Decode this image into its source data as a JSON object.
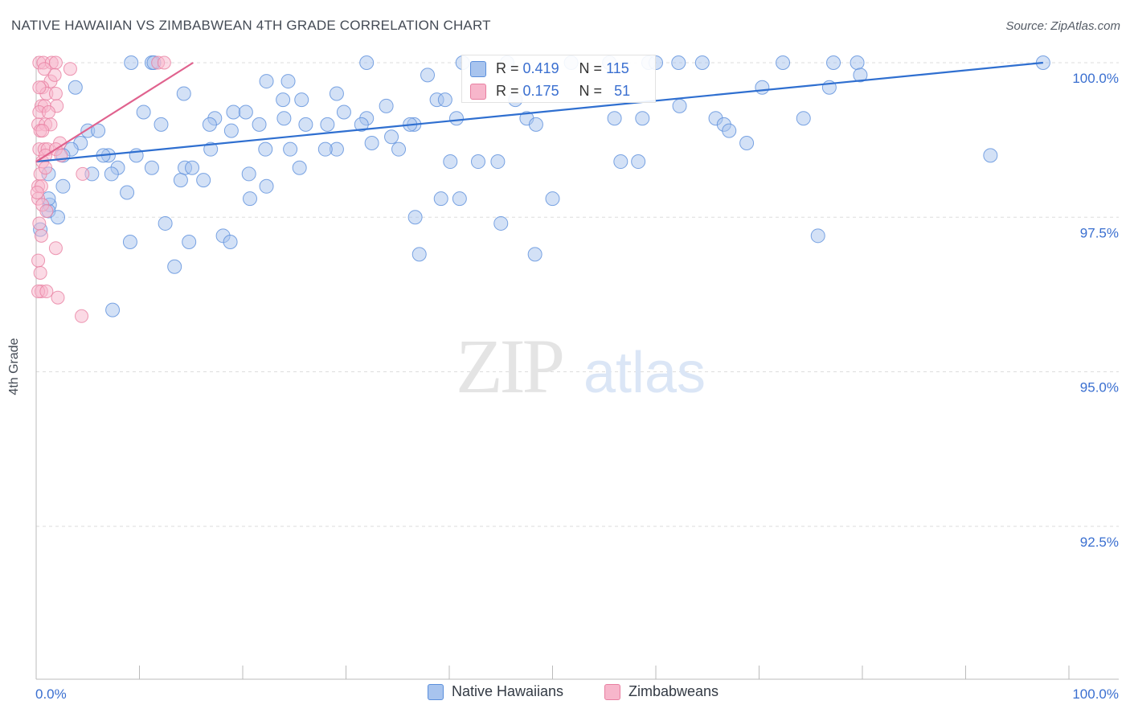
{
  "title": "NATIVE HAWAIIAN VS ZIMBABWEAN 4TH GRADE CORRELATION CHART",
  "source": "Source: ZipAtlas.com",
  "watermark": {
    "zip": "ZIP",
    "atlas": "atlas"
  },
  "colors": {
    "blue_fill": "#a8c4ee",
    "blue_stroke": "#5b8fdc",
    "blue_line": "#2f6fd0",
    "pink_fill": "#f7b6cb",
    "pink_stroke": "#e87fa1",
    "pink_line": "#e0628e",
    "axis_label": "#3a6fd0",
    "grid": "#dddddd"
  },
  "stats": {
    "r_label": "R =",
    "n_label": "N =",
    "blue": {
      "r": "0.419",
      "n": "115"
    },
    "pink": {
      "r": "0.175",
      "n": "51"
    }
  },
  "legend": {
    "blue": "Native Hawaiians",
    "pink": "Zimbabweans"
  },
  "chart_data": {
    "type": "scatter",
    "title": "NATIVE HAWAIIAN VS ZIMBABWEAN 4TH GRADE CORRELATION CHART",
    "xlabel": "",
    "ylabel": "4th Grade",
    "xlim": [
      0,
      100
    ],
    "ylim": [
      90,
      100.25
    ],
    "x_tick_labels": {
      "left": "0.0%",
      "right": "100.0%"
    },
    "y_ticks": [
      {
        "value": 100.0,
        "label": "100.0%"
      },
      {
        "value": 97.5,
        "label": "97.5%"
      },
      {
        "value": 95.0,
        "label": "95.0%"
      },
      {
        "value": 92.5,
        "label": "92.5%"
      }
    ],
    "series": [
      {
        "name": "Native Hawaiians",
        "color": "blue",
        "trend": {
          "x": [
            0,
            97.5
          ],
          "y": [
            98.4,
            100.0
          ]
        },
        "points": [
          [
            9.2,
            100.0
          ],
          [
            11.2,
            100.0
          ],
          [
            11.4,
            100.0
          ],
          [
            32.0,
            100.0
          ],
          [
            41.3,
            100.0
          ],
          [
            45.6,
            100.0
          ],
          [
            51.8,
            100.0
          ],
          [
            55.5,
            100.0
          ],
          [
            59.3,
            100.0
          ],
          [
            60.0,
            100.0
          ],
          [
            62.2,
            100.0
          ],
          [
            64.5,
            100.0
          ],
          [
            72.3,
            100.0
          ],
          [
            77.2,
            100.0
          ],
          [
            79.5,
            100.0
          ],
          [
            97.5,
            100.0
          ],
          [
            37.9,
            99.8
          ],
          [
            79.8,
            99.8
          ],
          [
            22.3,
            99.7
          ],
          [
            24.4,
            99.7
          ],
          [
            70.3,
            99.6
          ],
          [
            3.8,
            99.6
          ],
          [
            76.8,
            99.6
          ],
          [
            14.3,
            99.5
          ],
          [
            29.1,
            99.5
          ],
          [
            38.8,
            99.4
          ],
          [
            39.6,
            99.4
          ],
          [
            46.4,
            99.4
          ],
          [
            23.9,
            99.4
          ],
          [
            25.7,
            99.4
          ],
          [
            33.9,
            99.3
          ],
          [
            62.3,
            99.3
          ],
          [
            19.1,
            99.2
          ],
          [
            29.8,
            99.2
          ],
          [
            10.4,
            99.2
          ],
          [
            20.3,
            99.2
          ],
          [
            32.0,
            99.1
          ],
          [
            40.7,
            99.1
          ],
          [
            65.8,
            99.1
          ],
          [
            47.5,
            99.1
          ],
          [
            17.3,
            99.1
          ],
          [
            24.0,
            99.1
          ],
          [
            56.0,
            99.1
          ],
          [
            58.7,
            99.1
          ],
          [
            74.3,
            99.1
          ],
          [
            66.6,
            99.0
          ],
          [
            36.6,
            99.0
          ],
          [
            16.8,
            99.0
          ],
          [
            21.6,
            99.0
          ],
          [
            26.1,
            99.0
          ],
          [
            28.2,
            99.0
          ],
          [
            31.5,
            99.0
          ],
          [
            36.2,
            99.0
          ],
          [
            48.4,
            99.0
          ],
          [
            12.1,
            99.0
          ],
          [
            18.9,
            98.9
          ],
          [
            5.0,
            98.9
          ],
          [
            6.0,
            98.9
          ],
          [
            34.4,
            98.8
          ],
          [
            67.1,
            98.9
          ],
          [
            68.8,
            98.7
          ],
          [
            22.2,
            98.6
          ],
          [
            29.1,
            98.6
          ],
          [
            28.0,
            98.6
          ],
          [
            24.6,
            98.6
          ],
          [
            35.1,
            98.6
          ],
          [
            16.9,
            98.6
          ],
          [
            4.3,
            98.7
          ],
          [
            3.4,
            98.6
          ],
          [
            2.6,
            98.5
          ],
          [
            9.7,
            98.5
          ],
          [
            7.0,
            98.5
          ],
          [
            6.5,
            98.5
          ],
          [
            42.8,
            98.4
          ],
          [
            40.1,
            98.4
          ],
          [
            44.7,
            98.4
          ],
          [
            56.6,
            98.4
          ],
          [
            58.3,
            98.4
          ],
          [
            1.2,
            98.2
          ],
          [
            14.4,
            98.3
          ],
          [
            7.9,
            98.3
          ],
          [
            11.2,
            98.3
          ],
          [
            20.6,
            98.2
          ],
          [
            25.5,
            98.3
          ],
          [
            15.1,
            98.3
          ],
          [
            92.4,
            98.5
          ],
          [
            5.4,
            98.2
          ],
          [
            7.3,
            98.2
          ],
          [
            14.0,
            98.1
          ],
          [
            16.2,
            98.1
          ],
          [
            22.3,
            98.0
          ],
          [
            2.6,
            98.0
          ],
          [
            8.8,
            97.9
          ],
          [
            20.7,
            97.8
          ],
          [
            39.2,
            97.8
          ],
          [
            1.3,
            97.7
          ],
          [
            1.2,
            97.6
          ],
          [
            2.1,
            97.5
          ],
          [
            36.7,
            97.5
          ],
          [
            45.0,
            97.4
          ],
          [
            12.5,
            97.4
          ],
          [
            18.1,
            97.2
          ],
          [
            18.8,
            97.1
          ],
          [
            0.4,
            97.3
          ],
          [
            14.8,
            97.1
          ],
          [
            9.1,
            97.1
          ],
          [
            37.1,
            96.9
          ],
          [
            48.3,
            96.9
          ],
          [
            13.4,
            96.7
          ],
          [
            7.4,
            96.0
          ],
          [
            75.7,
            97.2
          ],
          [
            1.2,
            97.8
          ],
          [
            41.0,
            97.8
          ],
          [
            50.0,
            97.8
          ],
          [
            32.5,
            98.7
          ]
        ]
      },
      {
        "name": "Zimbabweans",
        "color": "pink",
        "trend": {
          "x": [
            0,
            15.2
          ],
          "y": [
            98.4,
            100.0
          ]
        },
        "points": [
          [
            0.3,
            100.0
          ],
          [
            0.7,
            100.0
          ],
          [
            1.5,
            100.0
          ],
          [
            1.9,
            100.0
          ],
          [
            11.8,
            100.0
          ],
          [
            12.4,
            100.0
          ],
          [
            3.3,
            99.9
          ],
          [
            1.4,
            99.7
          ],
          [
            1.8,
            99.8
          ],
          [
            0.6,
            99.6
          ],
          [
            1.0,
            99.5
          ],
          [
            1.9,
            99.5
          ],
          [
            0.5,
            99.3
          ],
          [
            0.8,
            99.3
          ],
          [
            2.0,
            99.3
          ],
          [
            0.3,
            99.2
          ],
          [
            1.2,
            99.2
          ],
          [
            0.2,
            99.0
          ],
          [
            0.9,
            99.0
          ],
          [
            1.4,
            99.0
          ],
          [
            0.4,
            98.9
          ],
          [
            0.6,
            98.9
          ],
          [
            2.3,
            98.7
          ],
          [
            0.3,
            98.6
          ],
          [
            0.8,
            98.6
          ],
          [
            1.1,
            98.6
          ],
          [
            1.9,
            98.6
          ],
          [
            0.6,
            98.4
          ],
          [
            0.9,
            98.5
          ],
          [
            4.5,
            98.2
          ],
          [
            0.4,
            98.2
          ],
          [
            0.9,
            98.3
          ],
          [
            0.2,
            98.0
          ],
          [
            0.5,
            98.0
          ],
          [
            0.2,
            97.8
          ],
          [
            0.6,
            97.7
          ],
          [
            1.0,
            97.6
          ],
          [
            0.3,
            97.4
          ],
          [
            0.5,
            97.2
          ],
          [
            1.9,
            97.0
          ],
          [
            0.2,
            96.8
          ],
          [
            0.4,
            96.6
          ],
          [
            0.5,
            96.3
          ],
          [
            0.2,
            96.3
          ],
          [
            2.1,
            96.2
          ],
          [
            4.4,
            95.9
          ],
          [
            1.0,
            96.3
          ],
          [
            0.3,
            99.6
          ],
          [
            0.8,
            99.9
          ],
          [
            2.4,
            98.5
          ],
          [
            0.1,
            97.9
          ]
        ]
      }
    ]
  }
}
